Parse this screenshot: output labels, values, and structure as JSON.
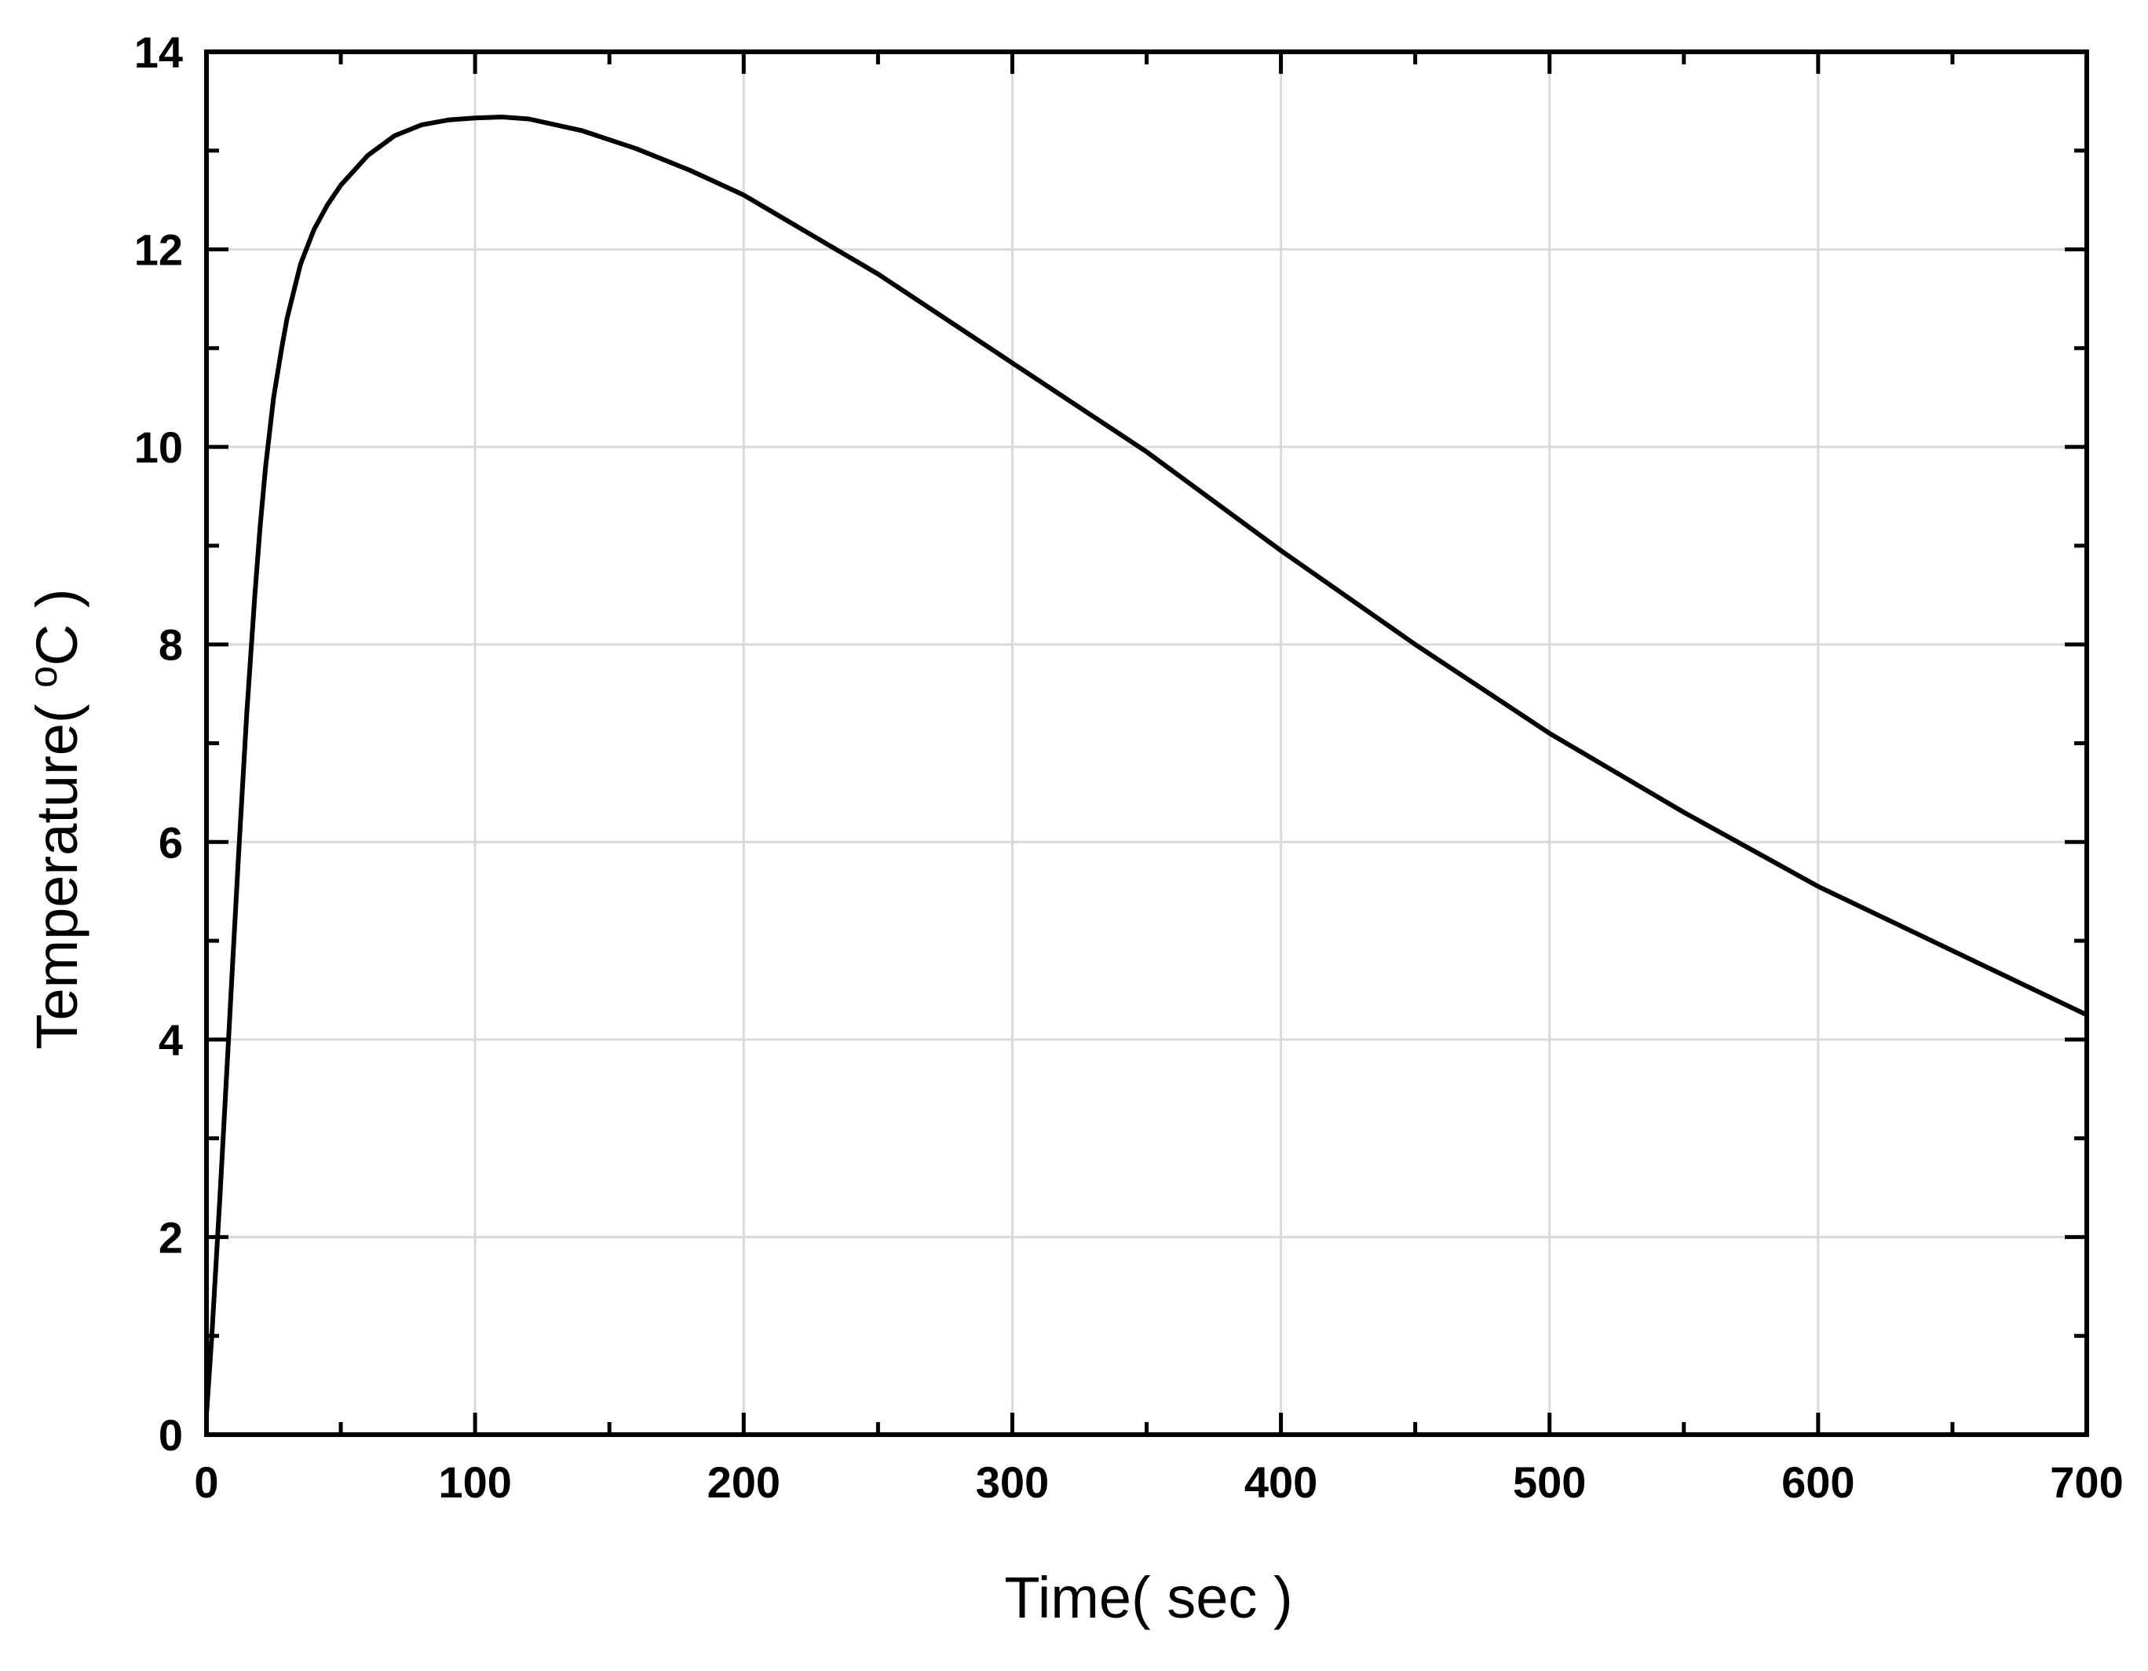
{
  "chart_data": {
    "type": "line",
    "title": "",
    "xlabel": "Time( sec )",
    "ylabel_prefix": "Temperature( ",
    "ylabel_unit_sup": "o",
    "ylabel_suffix": "C )",
    "xlim": [
      0,
      700
    ],
    "ylim": [
      0,
      14
    ],
    "x_ticks": [
      0,
      100,
      200,
      300,
      400,
      500,
      600,
      700
    ],
    "y_ticks": [
      0,
      2,
      4,
      6,
      8,
      10,
      12,
      14
    ],
    "grid": true,
    "legend": "none",
    "series": [
      {
        "color": "#000000",
        "x": [
          0,
          2,
          5,
          8,
          10,
          12,
          15,
          18,
          20,
          22,
          25,
          28,
          30,
          35,
          40,
          45,
          50,
          60,
          70,
          80,
          90,
          100,
          110,
          120,
          140,
          160,
          180,
          200,
          250,
          300,
          350,
          400,
          450,
          500,
          550,
          600,
          650,
          700
        ],
        "y": [
          0.2,
          1.0,
          2.4,
          3.9,
          4.9,
          5.9,
          7.3,
          8.5,
          9.2,
          9.8,
          10.5,
          11.0,
          11.3,
          11.85,
          12.2,
          12.45,
          12.65,
          12.95,
          13.15,
          13.26,
          13.31,
          13.33,
          13.34,
          13.32,
          13.2,
          13.02,
          12.8,
          12.55,
          11.75,
          10.85,
          9.95,
          8.95,
          8.0,
          7.1,
          6.3,
          5.55,
          4.9,
          4.25
        ]
      }
    ]
  }
}
